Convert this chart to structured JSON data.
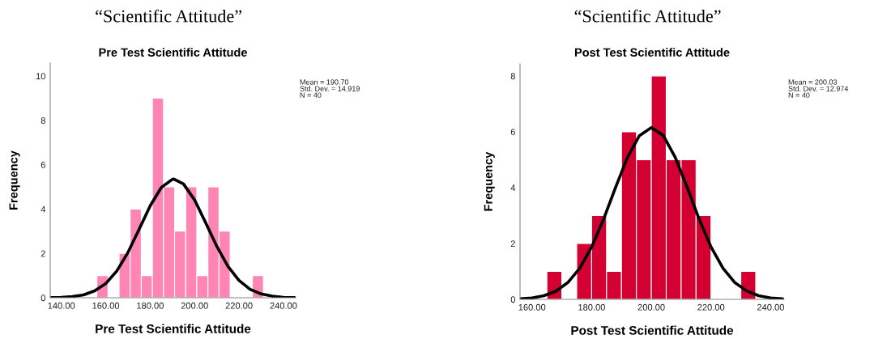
{
  "chart_data": [
    {
      "type": "histogram",
      "title": "“Scientific Attitude”",
      "subtitle": "Pre Test Scientific Attitude",
      "xlabel": "Pre Test Scientific Attitude",
      "ylabel": "Frequency",
      "bins": [
        156,
        161,
        166,
        171,
        176,
        181,
        186,
        191,
        196,
        201,
        206,
        211,
        216,
        221,
        226,
        231
      ],
      "values": [
        1,
        0,
        2,
        4,
        1,
        9,
        5,
        3,
        5,
        1,
        5,
        3,
        0,
        0,
        1
      ],
      "color": "#ff86b4",
      "series": [
        {
          "type": "line",
          "color": "#000000",
          "x": [
            135,
            140,
            145,
            150,
            155,
            160,
            165,
            170,
            175,
            180,
            185,
            190,
            190.7,
            195,
            200,
            205,
            210,
            215,
            220,
            225,
            230,
            235,
            240,
            245
          ],
          "values": [
            0.01,
            0.02,
            0.05,
            0.13,
            0.31,
            0.64,
            1.21,
            2.04,
            3.08,
            4.14,
            4.97,
            5.34,
            5.35,
            5.13,
            4.41,
            3.38,
            2.32,
            1.42,
            0.78,
            0.38,
            0.17,
            0.07,
            0.02,
            0.01
          ]
        }
      ],
      "xlim": [
        135,
        245.5
      ],
      "ylim": [
        0,
        10.58
      ],
      "xticks": [
        {
          "value": 140,
          "label": "140.00"
        },
        {
          "value": 160,
          "label": "160.00"
        },
        {
          "value": 180,
          "label": "180.00"
        },
        {
          "value": 200,
          "label": "200.00"
        },
        {
          "value": 220,
          "label": "220.00"
        },
        {
          "value": 240,
          "label": "240.00"
        }
      ],
      "yticks": [
        0,
        2,
        4,
        6,
        8,
        10
      ],
      "grid": false,
      "annotations": [
        "Mean = 190.70\nStd. Dev. = 14.919\nN = 40"
      ]
    },
    {
      "type": "histogram",
      "title": "“Scientific Attitude”",
      "subtitle": "Post Test Scientific Attitude",
      "xlabel": "Post Test Scientific Attitude",
      "ylabel": "Frequency",
      "bins": [
        165,
        170,
        175,
        180,
        185,
        190,
        195,
        200,
        205,
        210,
        215,
        220,
        225,
        230,
        235
      ],
      "values": [
        1,
        0,
        2,
        3,
        1,
        6,
        5,
        8,
        5,
        5,
        3,
        0,
        0,
        1
      ],
      "color": "#d40032",
      "series": [
        {
          "type": "line",
          "color": "#000000",
          "x": [
            156,
            160,
            164,
            168,
            172,
            176,
            180,
            184,
            188,
            192,
            196,
            200,
            204,
            208,
            212,
            216,
            220,
            224,
            228,
            232,
            236,
            240,
            244
          ],
          "values": [
            0.02,
            0.05,
            0.13,
            0.29,
            0.6,
            1.11,
            1.87,
            2.87,
            4.0,
            5.08,
            5.86,
            6.15,
            5.87,
            5.09,
            4.02,
            2.88,
            1.88,
            1.12,
            0.6,
            0.3,
            0.13,
            0.05,
            0.02
          ]
        }
      ],
      "xlim": [
        156,
        244.5
      ],
      "ylim": [
        0,
        8.43
      ],
      "xticks": [
        {
          "value": 160,
          "label": "160.00"
        },
        {
          "value": 180,
          "label": "180.00"
        },
        {
          "value": 200,
          "label": "200.00"
        },
        {
          "value": 220,
          "label": "220.00"
        },
        {
          "value": 240,
          "label": "240.00"
        }
      ],
      "yticks": [
        0,
        2,
        4,
        6,
        8
      ],
      "grid": false,
      "annotations": [
        "Mean = 200.03\nStd. Dev. = 12.974\nN = 40"
      ]
    }
  ]
}
